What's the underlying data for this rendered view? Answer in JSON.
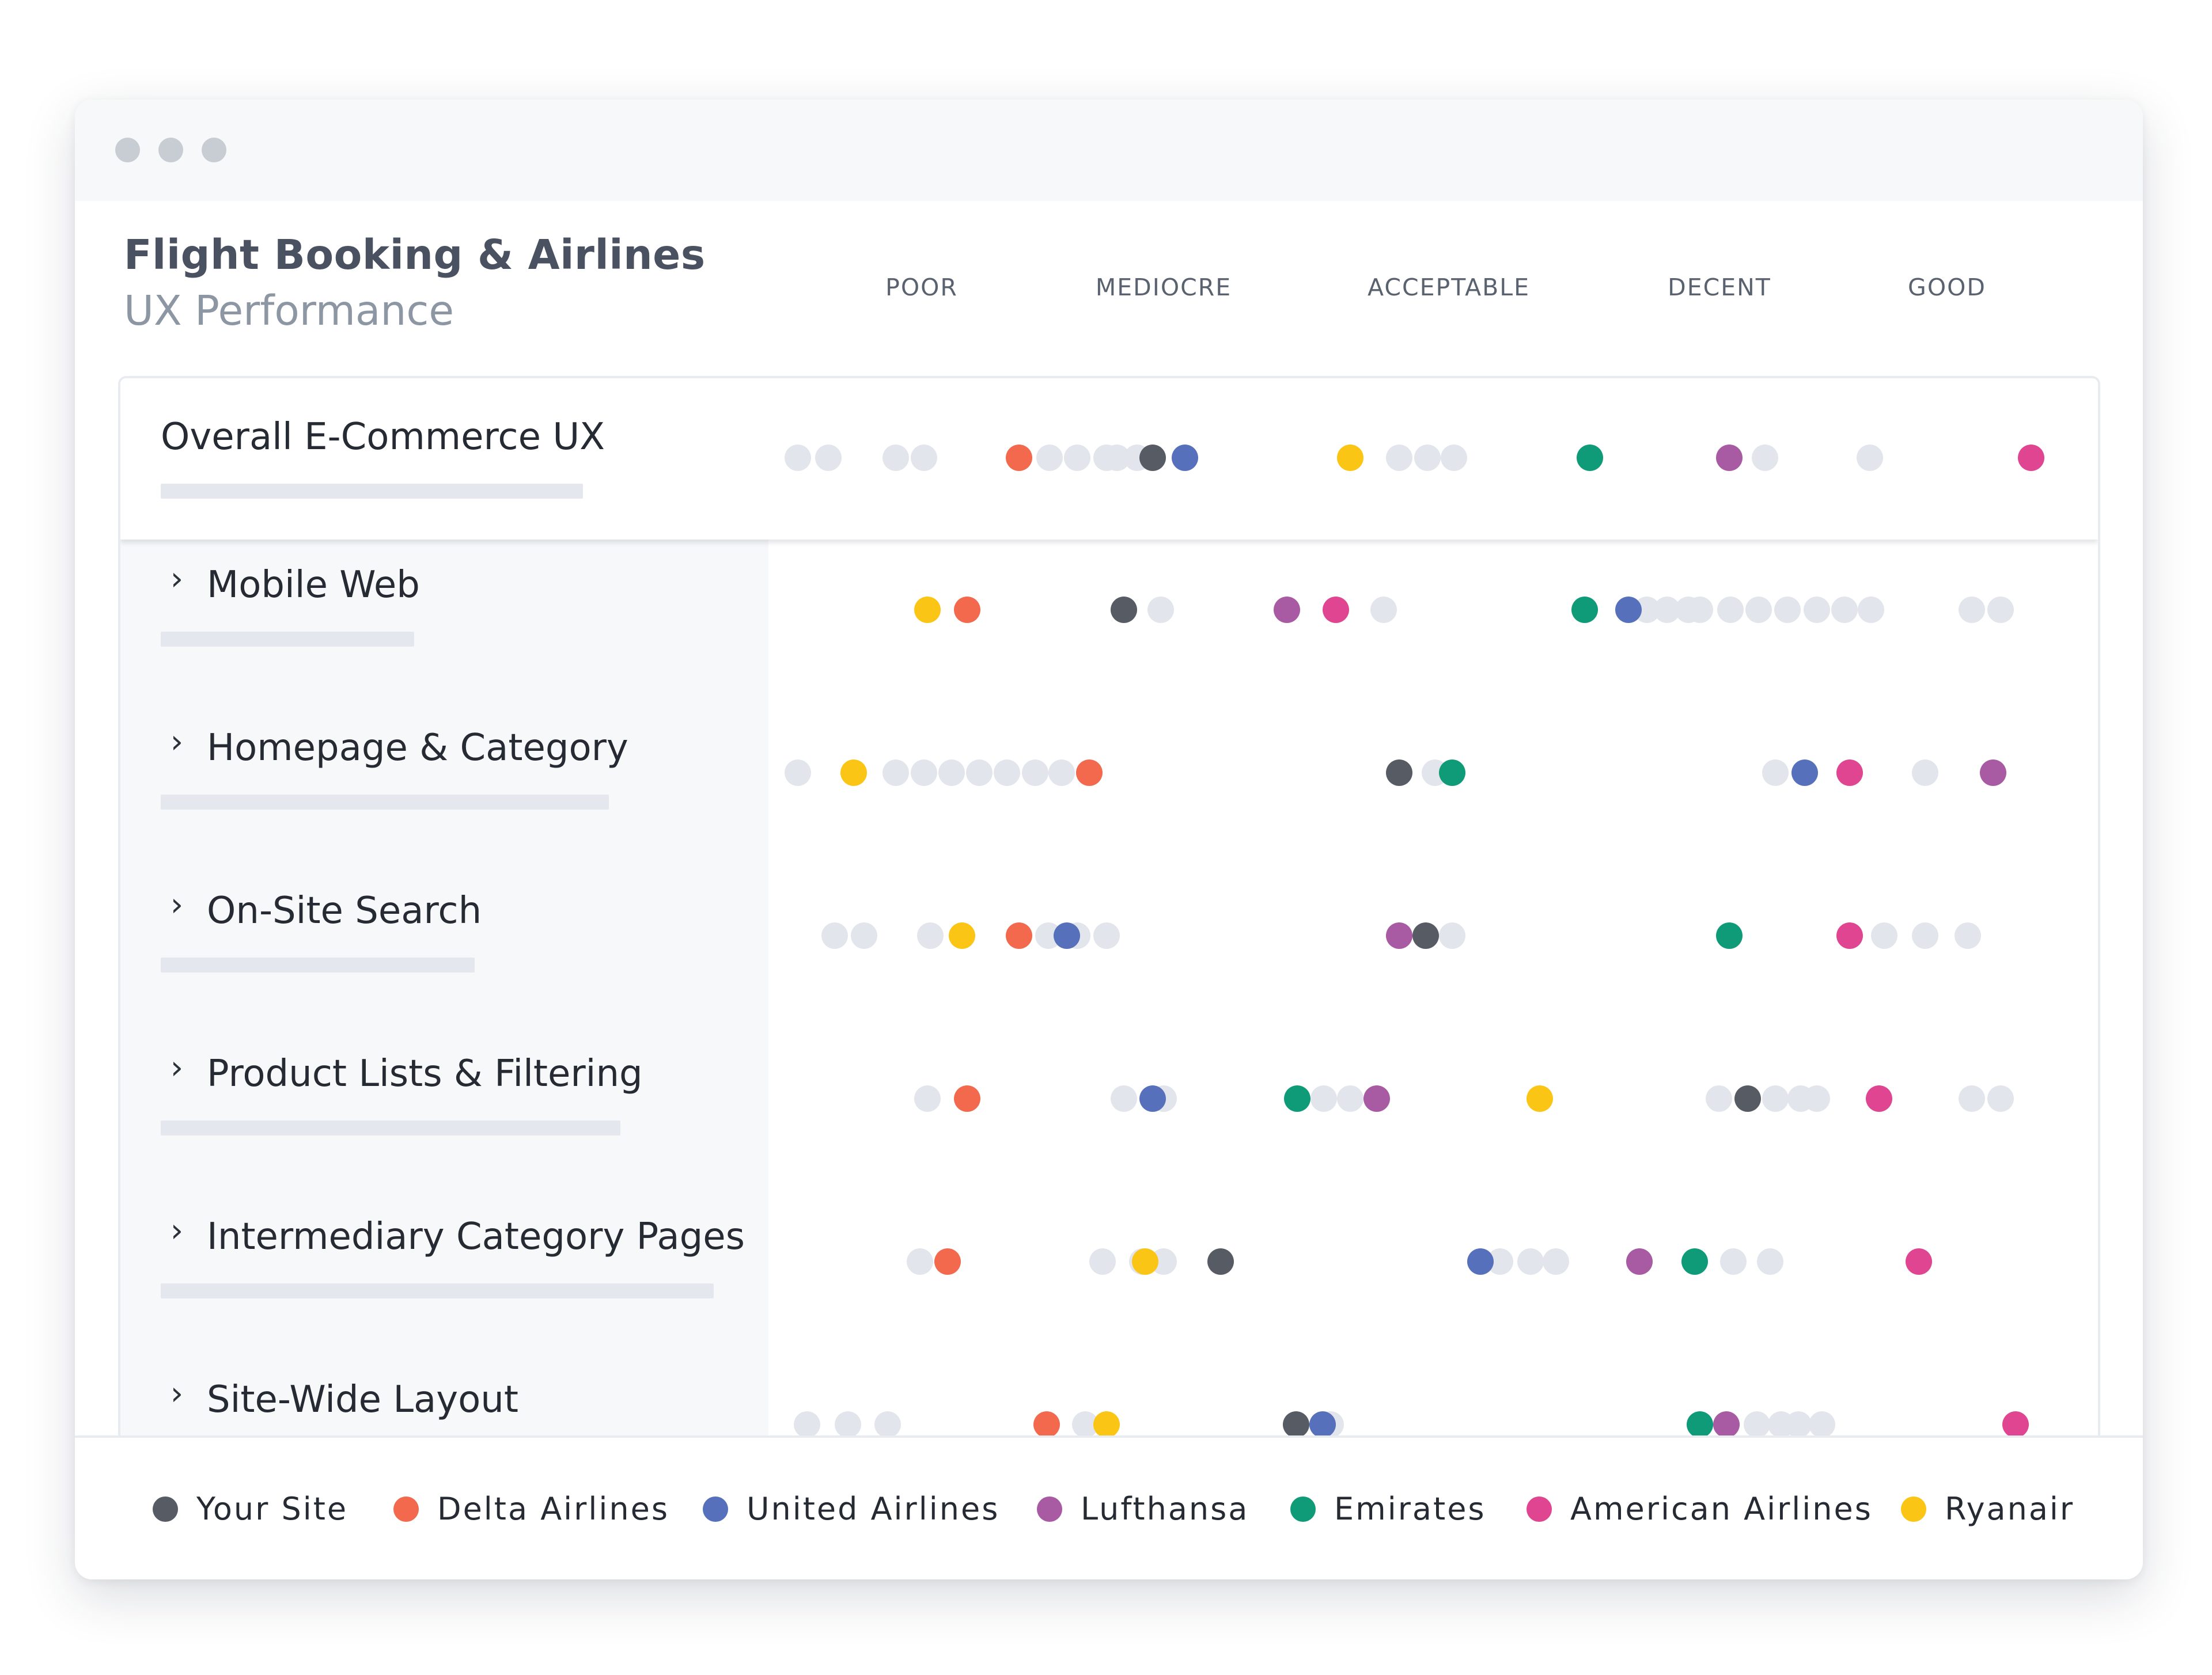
{
  "header": {
    "title": "Flight Booking & Airlines",
    "subtitle": "UX Performance"
  },
  "scale_labels": [
    "POOR",
    "MEDIOCRE",
    "ACCEPTABLE",
    "DECENT",
    "GOOD"
  ],
  "colors": {
    "Your Site": "#575b63",
    "Delta Airlines": "#f2694e",
    "United Airlines": "#5770bc",
    "Lufthansa": "#a85aa3",
    "Emirates": "#0f9b78",
    "American Airlines": "#df4590",
    "Ryanair": "#fbc515",
    "other": "#e2e6ec"
  },
  "legend": [
    "Your Site",
    "Delta Airlines",
    "United Airlines",
    "Lufthansa",
    "Emirates",
    "American Airlines",
    "Ryanair"
  ],
  "rows": [
    {
      "label": "Overall E-Commerce UX",
      "expandable": false,
      "highlights": {
        "Your Site": 0.288,
        "Delta Airlines": 0.187,
        "United Airlines": 0.312,
        "Lufthansa": 0.723,
        "Emirates": 0.618,
        "American Airlines": 0.951,
        "Ryanair": 0.437
      },
      "others": [
        0.02,
        0.043,
        0.094,
        0.115,
        0.21,
        0.231,
        0.253,
        0.261,
        0.276,
        0.474,
        0.495,
        0.515,
        0.75,
        0.829
      ]
    },
    {
      "label": "Mobile Web",
      "expandable": true,
      "highlights": {
        "Your Site": 0.266,
        "Delta Airlines": 0.148,
        "United Airlines": 0.647,
        "Lufthansa": 0.389,
        "Emirates": 0.614,
        "American Airlines": 0.426,
        "Ryanair": 0.118
      },
      "others": [
        0.294,
        0.462,
        0.661,
        0.676,
        0.692,
        0.701,
        0.724,
        0.745,
        0.767,
        0.789,
        0.81,
        0.83,
        0.906,
        0.928
      ]
    },
    {
      "label": "Homepage & Category",
      "expandable": true,
      "highlights": {
        "Your Site": 0.474,
        "Delta Airlines": 0.24,
        "United Airlines": 0.78,
        "Lufthansa": 0.922,
        "Emirates": 0.514,
        "American Airlines": 0.814,
        "Ryanair": 0.062
      },
      "others": [
        0.02,
        0.094,
        0.115,
        0.136,
        0.157,
        0.178,
        0.199,
        0.219,
        0.501,
        0.758,
        0.871
      ]
    },
    {
      "label": "On-Site Search",
      "expandable": true,
      "highlights": {
        "Your Site": 0.494,
        "Delta Airlines": 0.187,
        "United Airlines": 0.223,
        "Lufthansa": 0.474,
        "Emirates": 0.723,
        "American Airlines": 0.814,
        "Ryanair": 0.144
      },
      "others": [
        0.048,
        0.07,
        0.12,
        0.209,
        0.231,
        0.253,
        0.514,
        0.84,
        0.871,
        0.903
      ]
    },
    {
      "label": "Product Lists & Filtering",
      "expandable": true,
      "highlights": {
        "Your Site": 0.737,
        "Delta Airlines": 0.148,
        "United Airlines": 0.288,
        "Lufthansa": 0.457,
        "Emirates": 0.397,
        "American Airlines": 0.836,
        "Ryanair": 0.58
      },
      "others": [
        0.118,
        0.266,
        0.296,
        0.417,
        0.437,
        0.715,
        0.758,
        0.777,
        0.789,
        0.906,
        0.928
      ]
    },
    {
      "label": "Intermediary Category Pages",
      "expandable": true,
      "highlights": {
        "Your Site": 0.339,
        "Delta Airlines": 0.133,
        "United Airlines": 0.535,
        "Lufthansa": 0.655,
        "Emirates": 0.697,
        "American Airlines": 0.866,
        "Ryanair": 0.282
      },
      "others": [
        0.112,
        0.25,
        0.28,
        0.296,
        0.55,
        0.573,
        0.592,
        0.726,
        0.754
      ]
    },
    {
      "label": "Site-Wide Layout",
      "expandable": true,
      "highlights": {
        "Your Site": 0.396,
        "Delta Airlines": 0.208,
        "United Airlines": 0.416,
        "Lufthansa": 0.721,
        "Emirates": 0.701,
        "American Airlines": 0.939,
        "Ryanair": 0.253
      },
      "others": [
        0.027,
        0.058,
        0.088,
        0.237,
        0.418,
        0.422,
        0.744,
        0.762,
        0.775,
        0.793
      ]
    }
  ]
}
